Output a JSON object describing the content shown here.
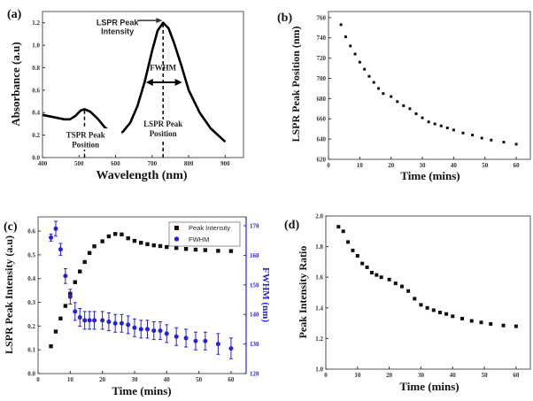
{
  "chart_data": [
    {
      "panel": "(a)",
      "type": "line",
      "xlabel": "Wavelength (nm)",
      "ylabel": "Absorbance (a.u)",
      "xlim": [
        400,
        950
      ],
      "ylim": [
        0,
        1.3
      ],
      "xticks": [
        400,
        500,
        600,
        700,
        800,
        900
      ],
      "yticks": [
        0.0,
        0.2,
        0.4,
        0.6,
        0.8,
        1.0,
        1.2
      ],
      "x": [
        400,
        430,
        460,
        475,
        490,
        505,
        515,
        530,
        550,
        570,
        590,
        605,
        620,
        640,
        660,
        680,
        700,
        715,
        730,
        745,
        760,
        780,
        800,
        830,
        860,
        900
      ],
      "y": [
        0.38,
        0.36,
        0.34,
        0.34,
        0.37,
        0.42,
        0.43,
        0.41,
        0.35,
        0.27,
        0.22,
        0.21,
        0.23,
        0.31,
        0.46,
        0.68,
        0.95,
        1.13,
        1.2,
        1.15,
        1.02,
        0.82,
        0.6,
        0.4,
        0.26,
        0.14
      ],
      "annotations": {
        "peak_intensity": [
          "LSPR Peak",
          "Intensity"
        ],
        "fwhm": "FWHM",
        "tspr_position": [
          "TSPR Peak",
          "Position"
        ],
        "lspr_position": [
          "LSPR Peak",
          "Position"
        ]
      }
    },
    {
      "panel": "(b)",
      "type": "scatter",
      "xlabel": "Time (mins)",
      "ylabel": "LSPR Peak Position (nm)",
      "xlim": [
        0,
        64.5
      ],
      "ylim": [
        620,
        766
      ],
      "xticks": [
        0,
        10,
        20,
        30,
        40,
        50,
        60
      ],
      "yticks": [
        620,
        640,
        660,
        680,
        700,
        720,
        740,
        760
      ],
      "x": [
        4,
        5.5,
        7,
        8.5,
        10,
        11.5,
        13,
        14.5,
        16,
        17.5,
        20,
        22,
        24,
        26,
        28,
        30,
        32,
        34,
        36,
        38,
        40,
        43,
        46,
        49,
        52,
        56,
        60
      ],
      "y": [
        753,
        741,
        732,
        724,
        716,
        709,
        702,
        696,
        690,
        685,
        682,
        677,
        673,
        670,
        665,
        661,
        657,
        655,
        653,
        651,
        649,
        646,
        644,
        641,
        639,
        637,
        635
      ]
    },
    {
      "panel": "(c)",
      "type": "scatter",
      "xlabel": "Time (mins)",
      "ylabel": "LSPR Peak Intensity (a.u)",
      "ylabel_right": "FWHM (nm)",
      "xlim": [
        0,
        64.7
      ],
      "ylim": [
        0,
        0.66
      ],
      "ylim_right": [
        120,
        173
      ],
      "xticks": [
        0,
        10,
        20,
        30,
        40,
        50,
        60
      ],
      "yticks": [
        0.0,
        0.1,
        0.2,
        0.3,
        0.4,
        0.5,
        0.6
      ],
      "yticks_right": [
        120,
        130,
        140,
        150,
        160,
        170
      ],
      "legend": {
        "position": "top-right",
        "entries": [
          "Peak Intensity",
          "FWHM"
        ]
      },
      "colors": {
        "intensity": "#111111",
        "fwhm": "#2222dd"
      },
      "x": [
        4,
        5.5,
        7,
        8.5,
        10,
        11.5,
        13,
        14.5,
        16,
        17.5,
        20,
        22,
        24,
        26,
        28,
        30,
        32,
        34,
        36,
        38,
        40,
        43,
        46,
        49,
        52,
        56,
        60
      ],
      "series": [
        {
          "name": "Peak Intensity",
          "values": [
            0.115,
            0.177,
            0.232,
            0.285,
            0.336,
            0.385,
            0.43,
            0.47,
            0.508,
            0.536,
            0.557,
            0.578,
            0.588,
            0.586,
            0.57,
            0.559,
            0.551,
            0.545,
            0.54,
            0.537,
            0.533,
            0.529,
            0.525,
            0.522,
            0.52,
            0.517,
            0.516
          ]
        },
        {
          "name": "FWHM",
          "values": [
            166,
            169,
            162,
            153,
            146,
            141,
            139,
            138,
            138,
            138,
            138,
            137.5,
            137,
            137,
            136.5,
            135.5,
            135,
            135,
            134.5,
            134.5,
            133.5,
            132.5,
            132,
            131,
            131,
            130,
            128.5
          ],
          "errors": [
            1.2,
            2.5,
            2,
            2.5,
            2.5,
            3,
            3,
            3,
            3,
            3,
            3,
            3,
            3,
            3,
            3,
            3,
            3,
            3,
            3,
            3,
            3,
            3,
            3,
            3,
            3,
            3.5,
            3.5
          ]
        }
      ]
    },
    {
      "panel": "(d)",
      "type": "scatter",
      "xlabel": "Time (mins)",
      "ylabel": "Peak Intensity Ratio",
      "xlim": [
        0,
        64.5
      ],
      "ylim": [
        1.0,
        2.0
      ],
      "xticks": [
        0,
        10,
        20,
        30,
        40,
        50,
        60
      ],
      "yticks": [
        1.0,
        1.2,
        1.4,
        1.6,
        1.8,
        2.0
      ],
      "x": [
        4,
        5.5,
        7,
        8.5,
        10,
        11.5,
        13,
        14.5,
        16,
        17.5,
        20,
        22,
        24,
        26,
        28,
        30,
        32,
        34,
        36,
        38,
        40,
        43,
        46,
        49,
        52,
        56,
        60
      ],
      "y": [
        1.93,
        1.9,
        1.83,
        1.775,
        1.74,
        1.69,
        1.665,
        1.63,
        1.615,
        1.6,
        1.585,
        1.56,
        1.54,
        1.51,
        1.46,
        1.42,
        1.4,
        1.385,
        1.37,
        1.36,
        1.345,
        1.33,
        1.315,
        1.305,
        1.295,
        1.285,
        1.28
      ]
    }
  ]
}
